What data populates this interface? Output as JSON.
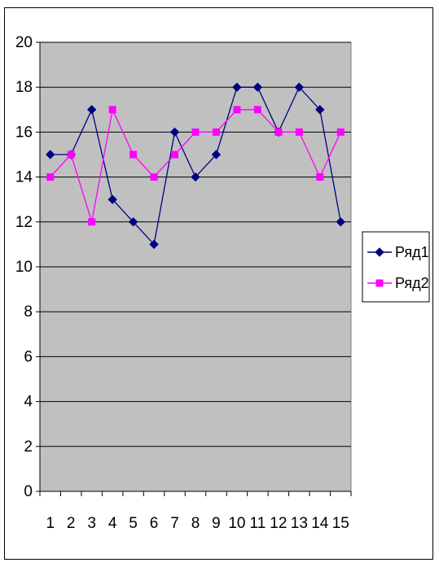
{
  "chart_data": {
    "type": "line",
    "categories": [
      "1",
      "2",
      "3",
      "4",
      "5",
      "6",
      "7",
      "8",
      "9",
      "10",
      "11",
      "12",
      "13",
      "14",
      "15"
    ],
    "series": [
      {
        "name": "Ряд1",
        "values": [
          15,
          15,
          17,
          13,
          12,
          11,
          16,
          14,
          15,
          18,
          18,
          16,
          18,
          17,
          12
        ],
        "color": "#000080",
        "marker": "diamond"
      },
      {
        "name": "Ряд2",
        "values": [
          14,
          15,
          12,
          17,
          15,
          14,
          15,
          16,
          16,
          17,
          17,
          16,
          16,
          14,
          16
        ],
        "color": "#ff00ff",
        "marker": "square"
      }
    ],
    "ylim": [
      0,
      20
    ],
    "yticks": [
      0,
      2,
      4,
      6,
      8,
      10,
      12,
      14,
      16,
      18,
      20
    ],
    "grid": "horizontal",
    "plot_background": "#c0c0c0",
    "legend_position": "right",
    "title": "",
    "xlabel": "",
    "ylabel": ""
  }
}
